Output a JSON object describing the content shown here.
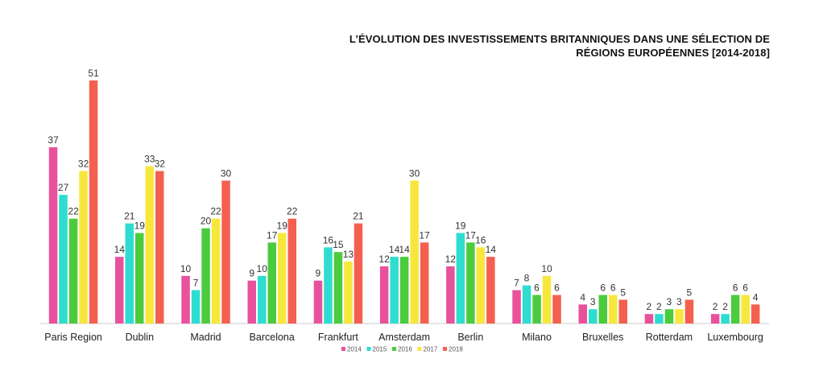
{
  "chart_data": {
    "type": "bar",
    "title_line1": "L’ÉVOLUTION DES INVESTISSEMENTS BRITANNIQUES DANS UNE SÉLECTION DE",
    "title_line2": "RÉGIONS EUROPÉENNES [2014-2018]",
    "xlabel": "",
    "ylabel": "",
    "ylim": [
      0,
      55
    ],
    "grid": false,
    "legend_position": "bottom",
    "categories": [
      "Paris Region",
      "Dublin",
      "Madrid",
      "Barcelona",
      "Frankfurt",
      "Amsterdam",
      "Berlin",
      "Milano",
      "Bruxelles",
      "Rotterdam",
      "Luxembourg"
    ],
    "series": [
      {
        "name": "2014",
        "color": "#E8529C",
        "values": [
          37,
          14,
          10,
          9,
          9,
          12,
          12,
          7,
          4,
          2,
          2
        ]
      },
      {
        "name": "2015",
        "color": "#2EDDD0",
        "values": [
          27,
          21,
          7,
          10,
          16,
          14,
          19,
          8,
          3,
          2,
          2
        ]
      },
      {
        "name": "2016",
        "color": "#4CCB3E",
        "values": [
          22,
          19,
          20,
          17,
          15,
          14,
          17,
          6,
          6,
          3,
          6
        ]
      },
      {
        "name": "2017",
        "color": "#F7E73D",
        "values": [
          32,
          33,
          22,
          19,
          13,
          30,
          16,
          10,
          6,
          3,
          6
        ]
      },
      {
        "name": "2018",
        "color": "#F4604F",
        "values": [
          51,
          32,
          30,
          22,
          21,
          17,
          14,
          6,
          5,
          5,
          4
        ]
      }
    ]
  }
}
